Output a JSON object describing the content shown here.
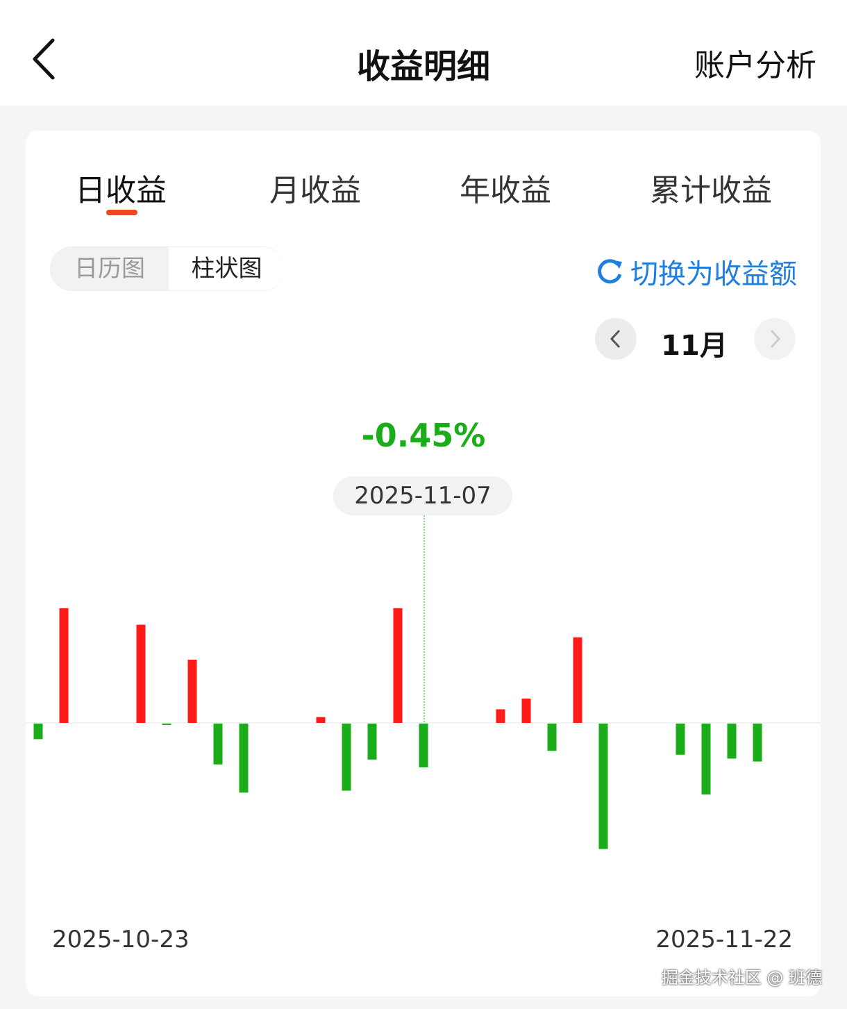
{
  "header": {
    "title": "收益明细",
    "right_link": "账户分析"
  },
  "tabs": [
    {
      "label": "日收益",
      "active": true
    },
    {
      "label": "月收益"
    },
    {
      "label": "年收益"
    },
    {
      "label": "累计收益"
    }
  ],
  "view_toggle": {
    "options": [
      "日历图",
      "柱状图"
    ],
    "selected": "柱状图"
  },
  "switch_label": "切换为收益额",
  "month_nav": {
    "label": "11月"
  },
  "selected": {
    "value": "-0.45%",
    "date": "2025-11-07"
  },
  "axis": {
    "start": "2025-10-23",
    "end": "2025-11-22"
  },
  "watermark": "掘金技术社区 @ 班德",
  "colors": {
    "positive": "#ff1a1a",
    "negative": "#1aad19",
    "accent": "#f04a1c",
    "link": "#1f7fe0"
  },
  "chart_data": {
    "type": "bar",
    "unit": "%",
    "x_start": "2025-10-23",
    "x_end": "2025-11-22",
    "categories": [
      "2025-10-23",
      "2025-10-24",
      "2025-10-27",
      "2025-10-28",
      "2025-10-29",
      "2025-10-30",
      "2025-10-31",
      "2025-11-03",
      "2025-11-04",
      "2025-11-05",
      "2025-11-06",
      "2025-11-07",
      "2025-11-10",
      "2025-11-11",
      "2025-11-12",
      "2025-11-13",
      "2025-11-14",
      "2025-11-17",
      "2025-11-18",
      "2025-11-19",
      "2025-11-20"
    ],
    "values": [
      -0.16,
      1.18,
      1.01,
      -0.01,
      0.65,
      -0.42,
      -0.71,
      0.06,
      -0.69,
      -0.37,
      1.18,
      -0.45,
      0.14,
      0.25,
      -0.28,
      0.88,
      -1.29,
      -0.32,
      -0.73,
      -0.36,
      -0.39
    ],
    "highlighted": "2025-11-07",
    "grid": false
  }
}
